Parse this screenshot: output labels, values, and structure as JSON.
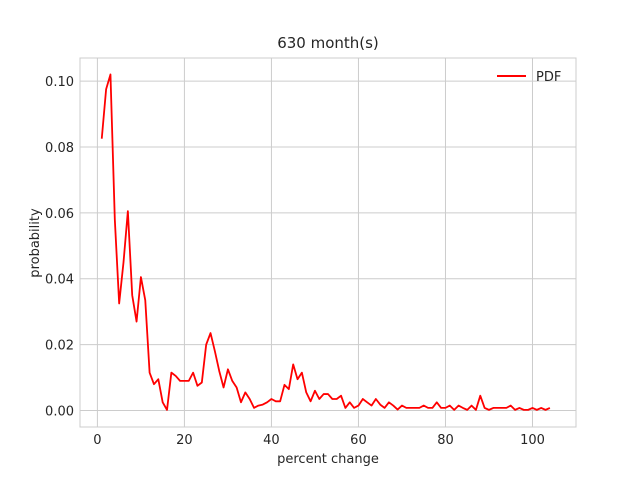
{
  "chart_data": {
    "type": "line",
    "title": "630 month(s)",
    "xlabel": "percent change",
    "ylabel": "probability",
    "xlim": [
      -4,
      110
    ],
    "ylim": [
      -0.005,
      0.107
    ],
    "xticks": [
      0,
      20,
      40,
      60,
      80,
      100
    ],
    "yticks": [
      0.0,
      0.02,
      0.04,
      0.06,
      0.08,
      0.1
    ],
    "ytick_labels": [
      "0.00",
      "0.02",
      "0.04",
      "0.06",
      "0.08",
      "0.10"
    ],
    "grid": true,
    "legend_position": "top-right",
    "series": [
      {
        "name": "PDF",
        "color": "#ff0000",
        "x": [
          1,
          2,
          3,
          4,
          5,
          6,
          7,
          8,
          9,
          10,
          11,
          12,
          13,
          14,
          15,
          16,
          17,
          18,
          19,
          20,
          21,
          22,
          23,
          24,
          25,
          26,
          27,
          28,
          29,
          30,
          31,
          32,
          33,
          34,
          35,
          36,
          37,
          38,
          39,
          40,
          41,
          42,
          43,
          44,
          45,
          46,
          47,
          48,
          49,
          50,
          51,
          52,
          53,
          54,
          55,
          56,
          57,
          58,
          59,
          60,
          61,
          62,
          63,
          64,
          65,
          66,
          67,
          68,
          69,
          70,
          71,
          72,
          73,
          74,
          75,
          76,
          77,
          78,
          79,
          80,
          81,
          82,
          83,
          84,
          85,
          86,
          87,
          88,
          89,
          90,
          91,
          92,
          93,
          94,
          95,
          96,
          97,
          98,
          99,
          100,
          101,
          102,
          103,
          104
        ],
        "y": [
          0.0825,
          0.0975,
          0.102,
          0.058,
          0.0325,
          0.045,
          0.0605,
          0.035,
          0.027,
          0.0405,
          0.0335,
          0.0115,
          0.008,
          0.0095,
          0.0025,
          0.0002,
          0.0115,
          0.0105,
          0.009,
          0.009,
          0.009,
          0.0115,
          0.0075,
          0.0085,
          0.02,
          0.0235,
          0.018,
          0.012,
          0.007,
          0.0125,
          0.009,
          0.007,
          0.0025,
          0.0055,
          0.0035,
          0.0008,
          0.0015,
          0.0018,
          0.0025,
          0.0035,
          0.0028,
          0.0028,
          0.0078,
          0.0065,
          0.014,
          0.0095,
          0.0115,
          0.0055,
          0.0028,
          0.006,
          0.0035,
          0.005,
          0.005,
          0.0035,
          0.0035,
          0.0045,
          0.0008,
          0.0025,
          0.0008,
          0.0015,
          0.0035,
          0.0025,
          0.0015,
          0.0035,
          0.0018,
          0.0008,
          0.0025,
          0.0015,
          0.0003,
          0.0015,
          0.0008,
          0.0008,
          0.0008,
          0.0008,
          0.0015,
          0.0008,
          0.0008,
          0.0025,
          0.0008,
          0.0008,
          0.0015,
          0.0002,
          0.0015,
          0.0008,
          0.0002,
          0.0015,
          0.0002,
          0.0045,
          0.0008,
          0.0002,
          0.0008,
          0.0008,
          0.0008,
          0.0008,
          0.0015,
          0.0002,
          0.0008,
          0.0002,
          0.0002,
          0.0008,
          0.0002,
          0.0008,
          0.0002,
          0.0008
        ]
      }
    ]
  }
}
